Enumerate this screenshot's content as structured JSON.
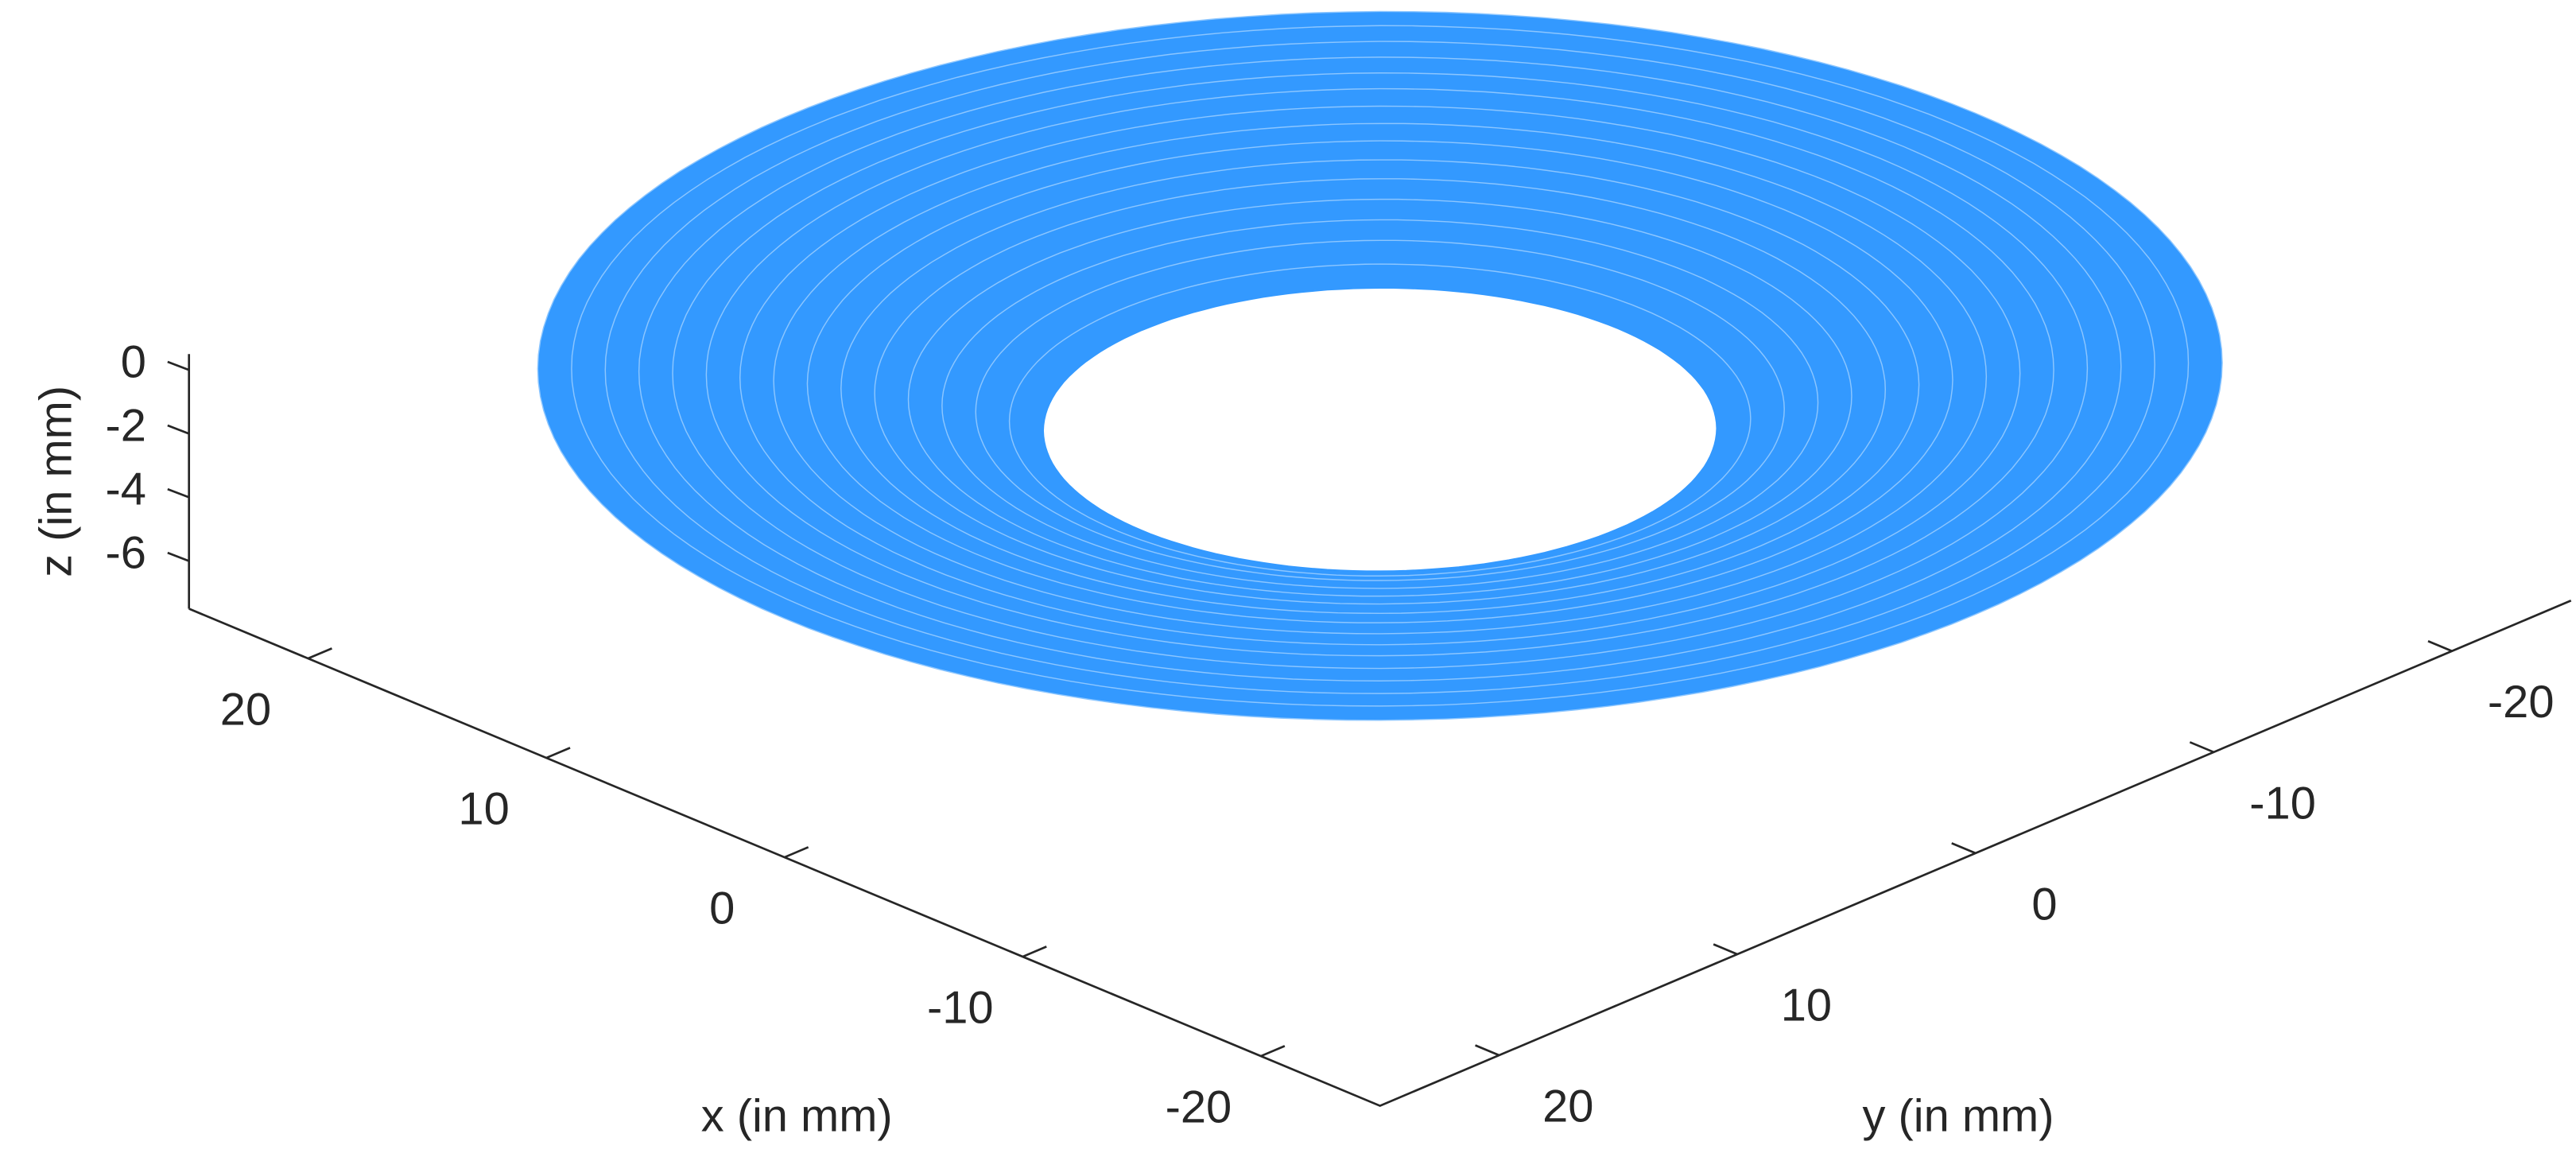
{
  "chart_data": {
    "type": "surface",
    "xlabel": "x (in mm)",
    "ylabel": "y (in mm)",
    "zlabel": "z (in mm)",
    "color": "#3399ff",
    "r": [
      10,
      11,
      12,
      13,
      14,
      15,
      16,
      17,
      18,
      19,
      20,
      21,
      22,
      23,
      24,
      25
    ],
    "z": [
      -2.0,
      -1.7,
      -1.4,
      -1.2,
      -1.0,
      -0.8,
      -0.65,
      -0.5,
      -0.4,
      -0.3,
      -0.2,
      -0.15,
      -0.1,
      -0.05,
      0,
      0
    ],
    "xlim": [
      -25,
      25
    ],
    "ylim": [
      -25,
      25
    ],
    "zlim": [
      -7.5,
      0.5
    ],
    "xticks": [
      -20,
      -10,
      0,
      10,
      20
    ],
    "yticks": [
      -20,
      -10,
      0,
      10,
      20
    ],
    "zticks": [
      -6,
      -4,
      -2,
      0
    ],
    "grid": false
  }
}
